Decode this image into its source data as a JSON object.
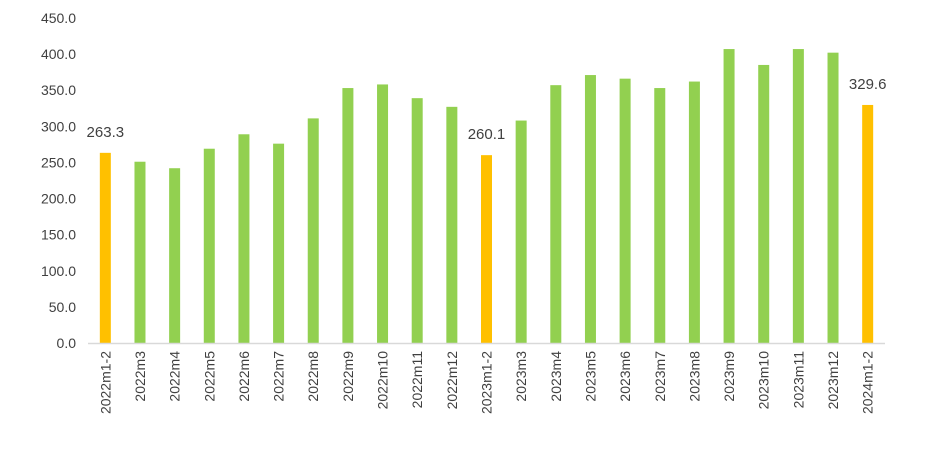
{
  "chart_data": {
    "type": "bar",
    "title": "",
    "xlabel": "",
    "ylabel": "",
    "ylim": [
      0,
      450
    ],
    "yticks": [
      "0.0",
      "50.0",
      "100.0",
      "150.0",
      "200.0",
      "250.0",
      "300.0",
      "350.0",
      "400.0",
      "450.0"
    ],
    "grid": false,
    "legend": "none",
    "categories": [
      "2022m1-2",
      "2022m3",
      "2022m4",
      "2022m5",
      "2022m6",
      "2022m7",
      "2022m8",
      "2022m9",
      "2022m10",
      "2022m11",
      "2022m12",
      "2023m1-2",
      "2023m3",
      "2023m4",
      "2023m5",
      "2023m6",
      "2023m7",
      "2023m8",
      "2023m9",
      "2023m10",
      "2023m11",
      "2023m12",
      "2024m1-2"
    ],
    "values": [
      263.3,
      251,
      242,
      269,
      289,
      276,
      311,
      353,
      358,
      339,
      327,
      260.1,
      308,
      357,
      371,
      366,
      353,
      362,
      407,
      385,
      407,
      402,
      329.6
    ],
    "highlight_indices": [
      0,
      11,
      22
    ],
    "data_labels": [
      {
        "index": 0,
        "text": "263.3"
      },
      {
        "index": 11,
        "text": "260.1"
      },
      {
        "index": 22,
        "text": "329.6"
      }
    ],
    "colors": {
      "default": "#92D050",
      "highlight": "#FFC000",
      "axis": "#D9D9D9",
      "text": "#404040"
    }
  }
}
